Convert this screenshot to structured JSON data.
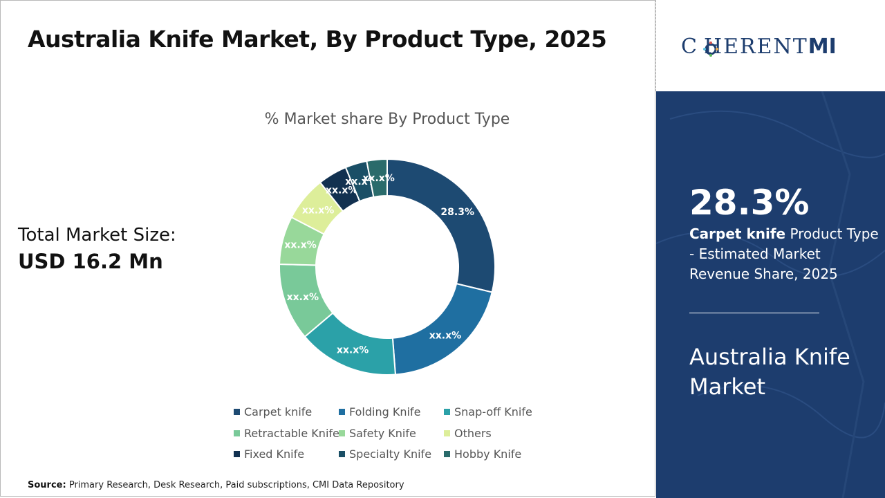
{
  "title": "Australia Knife Market, By Product Type, 2025",
  "total_market": {
    "label": "Total Market Size:",
    "value": "USD 16.2 Mn"
  },
  "source": {
    "label": "Source:",
    "text": "Primary Research, Desk Research, Paid subscriptions, CMI Data Repository"
  },
  "brand": {
    "logo_text": "C HERENT",
    "logo_suffix": "MI"
  },
  "highlight": {
    "value": "28.3%",
    "segment": "Carpet knife",
    "desc": "Product Type - Estimated Market Revenue Share, 2025",
    "market_name": "Australia Knife Market"
  },
  "colors": {
    "accent": "#1d3d6e",
    "title_text": "#111111"
  },
  "chart_data": {
    "type": "pie",
    "variant": "donut",
    "title": "% Market share By Product Type",
    "categories": [
      "Carpet knife",
      "Folding Knife",
      "Snap-off Knife",
      "Retractable Knife",
      "Safety Knife",
      "Others",
      "Fixed Knife",
      "Specialty Knife",
      "Hobby Knife"
    ],
    "values": [
      28.3,
      19.7,
      14.8,
      11.4,
      7.1,
      6.6,
      4.3,
      3.2,
      3.0
    ],
    "labels": [
      "28.3%",
      "xx.x%",
      "xx.x%",
      "xx.x%",
      "xx.x%",
      "xx.x%",
      "xx.x%",
      "xx.x%",
      "xx.x%"
    ],
    "colors": [
      "#1d4a72",
      "#1f6fa1",
      "#2ba1a8",
      "#79c999",
      "#98d89a",
      "#ddee9a",
      "#123150",
      "#1a4f66",
      "#2a6b6b"
    ],
    "legend_position": "bottom"
  }
}
